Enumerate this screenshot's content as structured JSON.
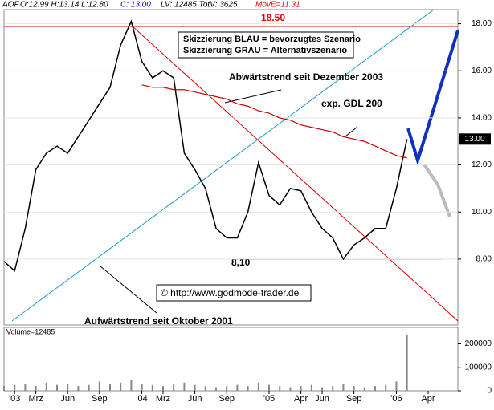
{
  "header": {
    "symbol": "AOF",
    "ohl": "O:12.99 H:13.14 L:12.80",
    "close": "C: 13.00",
    "volume": "LV: 12485 TotV: 3625",
    "mov": "MovE=11.31"
  },
  "chart_data": [
    {
      "type": "line",
      "x": [
        -1,
        0,
        1,
        2,
        3,
        4,
        5,
        6,
        7,
        8,
        9,
        10,
        11,
        12,
        13,
        14,
        15,
        16,
        17,
        18,
        19,
        20,
        21,
        22,
        23,
        24,
        25,
        26,
        27,
        28,
        29,
        30,
        31,
        32,
        33,
        34,
        35,
        36,
        37
      ],
      "series": [
        {
          "name": "AOF",
          "color": "#000000",
          "values": [
            7.9,
            7.5,
            9.3,
            11.8,
            12.5,
            12.8,
            12.5,
            13.2,
            13.9,
            14.6,
            15.3,
            17.1,
            18.1,
            16.4,
            15.7,
            16.0,
            15.7,
            12.5,
            11.8,
            11.0,
            9.3,
            8.9,
            8.9,
            10.0,
            12.1,
            10.7,
            10.3,
            11.0,
            10.9,
            10.0,
            9.3,
            8.9,
            8.0,
            8.6,
            8.9,
            9.3,
            9.3,
            11.0,
            13.1
          ]
        },
        {
          "name": "exp. GDL 200",
          "color": "#cc0000",
          "values": [
            null,
            null,
            null,
            null,
            null,
            null,
            null,
            null,
            null,
            null,
            null,
            null,
            null,
            15.4,
            15.3,
            15.3,
            15.2,
            15.2,
            15.1,
            15.0,
            14.9,
            14.8,
            14.6,
            14.5,
            14.3,
            14.2,
            14.0,
            13.9,
            13.7,
            13.6,
            13.5,
            13.4,
            13.2,
            13.1,
            13.0,
            12.8,
            12.6,
            12.4,
            12.3
          ]
        }
      ],
      "xlim": [
        -1,
        41.8
      ],
      "xticks": [
        {
          "value": 0,
          "label": "'03"
        },
        {
          "value": 2,
          "label": "Mrz"
        },
        {
          "value": 5,
          "label": "Jun"
        },
        {
          "value": 8,
          "label": "Sep"
        },
        {
          "value": 12,
          "label": "'04"
        },
        {
          "value": 14,
          "label": "Mrz"
        },
        {
          "value": 17,
          "label": "Jun"
        },
        {
          "value": 20,
          "label": "Sep"
        },
        {
          "value": 24,
          "label": "'05"
        },
        {
          "value": 27,
          "label": "Apr"
        },
        {
          "value": 29,
          "label": "Jun"
        },
        {
          "value": 32,
          "label": "Sep"
        },
        {
          "value": 36,
          "label": "'06"
        },
        {
          "value": 39,
          "label": "Apr"
        }
      ],
      "ylim": [
        5.2,
        18.6
      ],
      "yticks": [
        {
          "value": 8,
          "label": "8.00"
        },
        {
          "value": 10,
          "label": "10.00"
        },
        {
          "value": 12,
          "label": "12.00"
        },
        {
          "value": 14,
          "label": "14.00"
        },
        {
          "value": 16,
          "label": "16.00"
        },
        {
          "value": 18,
          "label": "18.00"
        }
      ],
      "last_price": "13.00",
      "annotations": {
        "high": "18.50",
        "low": "8,10",
        "blue": "Skizzierung BLAU = bevorzugtes Szenario",
        "grey": "Skizzierung GRAU = Alternativszenario",
        "down": "Abwärtstrend seit Dezember 2003",
        "up": "Aufwärtstrend seit Oktober 2001",
        "source": "© http://www.godmode-trader.de"
      }
    },
    {
      "type": "bar",
      "title": "Volume=12485",
      "color": "#888888",
      "x": [
        -1,
        0,
        1,
        2,
        3,
        4,
        5,
        6,
        7,
        8,
        9,
        10,
        11,
        12,
        13,
        14,
        15,
        16,
        17,
        18,
        19,
        20,
        21,
        22,
        23,
        24,
        25,
        26,
        27,
        28,
        29,
        30,
        31,
        32,
        33,
        34,
        35,
        36,
        37
      ],
      "values": [
        20000,
        25000,
        30000,
        20000,
        35000,
        25000,
        30000,
        20000,
        25000,
        40000,
        30000,
        35000,
        45000,
        30000,
        25000,
        20000,
        30000,
        35000,
        25000,
        20000,
        15000,
        20000,
        25000,
        20000,
        35000,
        25000,
        20000,
        15000,
        20000,
        25000,
        15000,
        20000,
        30000,
        20000,
        15000,
        20000,
        25000,
        40000,
        237000
      ],
      "ylim": [
        0,
        270000
      ],
      "yticks": [
        0,
        100000,
        200000
      ]
    }
  ]
}
